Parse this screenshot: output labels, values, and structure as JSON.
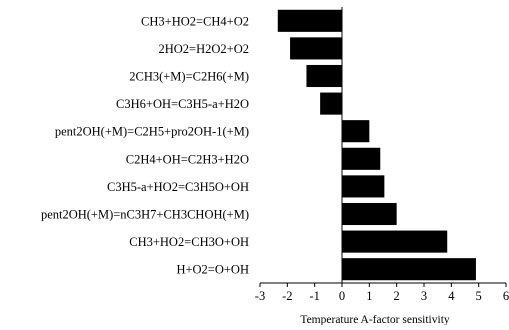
{
  "chart_data": {
    "type": "bar",
    "orientation": "horizontal",
    "title": "",
    "xlabel": "Temperature A-factor sensitivity",
    "ylabel": "",
    "xlim": [
      -3,
      6
    ],
    "xticks": [
      -3,
      -2,
      -1,
      0,
      1,
      2,
      3,
      4,
      5,
      6
    ],
    "grid": false,
    "legend": "none",
    "bar_color": "#000000",
    "categories": [
      "CH3+HO2=CH4+O2",
      "2HO2=H2O2+O2",
      "2CH3(+M)=C2H6(+M)",
      "C3H6+OH=C3H5-a+H2O",
      "pent2OH(+M)=C2H5+pro2OH-1(+M)",
      "C2H4+OH=C2H3+H2O",
      "C3H5-a+HO2=C3H5O+OH",
      "pent2OH(+M)=nC3H7+CH3CHOH(+M)",
      "CH3+HO2=CH3O+OH",
      "H+O2=O+OH"
    ],
    "values": [
      -2.35,
      -1.9,
      -1.3,
      -0.8,
      1.0,
      1.4,
      1.55,
      2.0,
      3.85,
      4.9
    ]
  }
}
